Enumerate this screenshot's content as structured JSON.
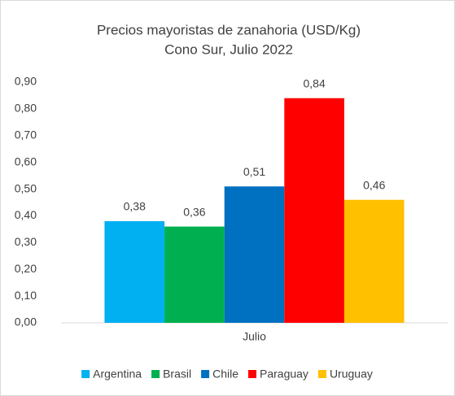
{
  "chart_data": {
    "type": "bar",
    "title": "Precios mayoristas de zanahoria (USD/Kg)",
    "subtitle": "Cono Sur, Julio 2022",
    "categories": [
      "Julio"
    ],
    "series": [
      {
        "name": "Argentina",
        "color": "#00b0f0",
        "values": [
          0.38
        ],
        "value_labels": [
          "0,38"
        ]
      },
      {
        "name": "Brasil",
        "color": "#00b050",
        "values": [
          0.36
        ],
        "value_labels": [
          "0,36"
        ]
      },
      {
        "name": "Chile",
        "color": "#0070c0",
        "values": [
          0.51
        ],
        "value_labels": [
          "0,51"
        ]
      },
      {
        "name": "Paraguay",
        "color": "#ff0000",
        "values": [
          0.84
        ],
        "value_labels": [
          "0,84"
        ]
      },
      {
        "name": "Uruguay",
        "color": "#ffc000",
        "values": [
          0.46
        ],
        "value_labels": [
          "0,46"
        ]
      }
    ],
    "ylim": [
      0,
      0.9
    ],
    "yticks": [
      {
        "value": 0,
        "label": "0,00"
      },
      {
        "value": 0.1,
        "label": "0,10"
      },
      {
        "value": 0.2,
        "label": "0,20"
      },
      {
        "value": 0.3,
        "label": "0,30"
      },
      {
        "value": 0.4,
        "label": "0,40"
      },
      {
        "value": 0.5,
        "label": "0,50"
      },
      {
        "value": 0.6,
        "label": "0,60"
      },
      {
        "value": 0.7,
        "label": "0,70"
      },
      {
        "value": 0.8,
        "label": "0,80"
      },
      {
        "value": 0.9,
        "label": "0,90"
      }
    ],
    "grid": false,
    "legend": "bottom"
  }
}
